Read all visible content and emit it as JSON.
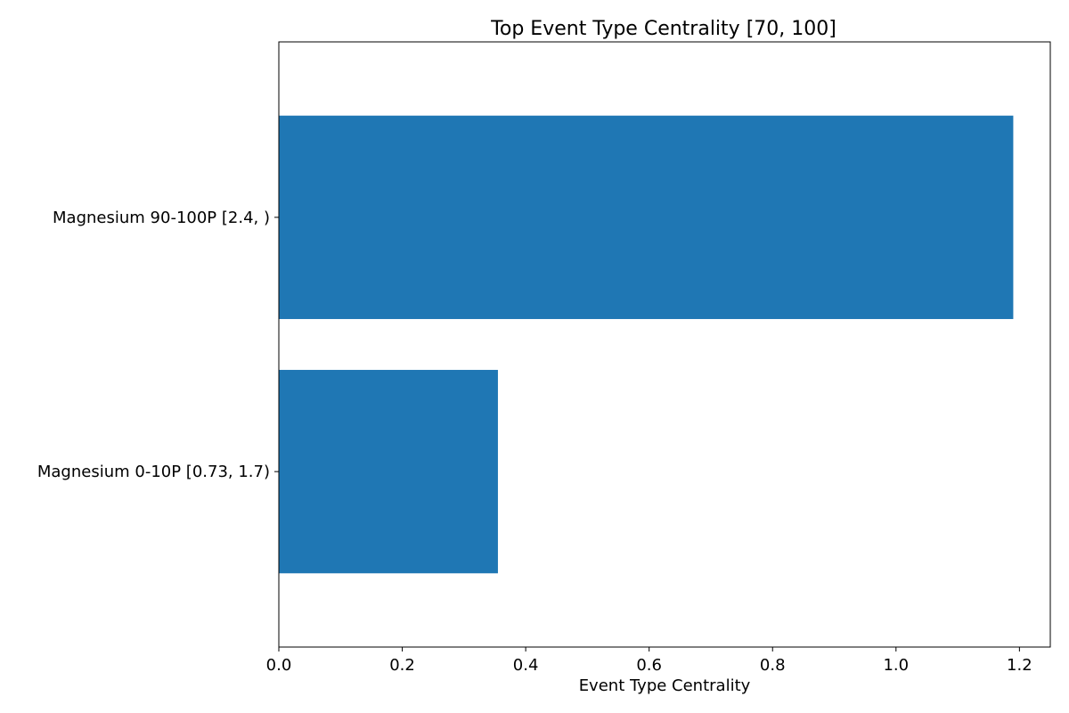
{
  "chart_data": {
    "type": "bar",
    "orientation": "horizontal",
    "title": "Top Event Type Centrality [70, 100]",
    "xlabel": "Event Type Centrality",
    "ylabel": "",
    "categories": [
      "Magnesium 0-10P [0.73, 1.7)",
      "Magnesium 90-100P [2.4, )"
    ],
    "values": [
      0.355,
      1.19
    ],
    "xlim": [
      0,
      1.25
    ],
    "xticks": [
      0.0,
      0.2,
      0.4,
      0.6,
      0.8,
      1.0,
      1.2
    ],
    "xtick_labels": [
      "0.0",
      "0.2",
      "0.4",
      "0.6",
      "0.8",
      "1.0",
      "1.2"
    ],
    "bar_color": "#1f77b4",
    "grid": false,
    "legend": false
  }
}
